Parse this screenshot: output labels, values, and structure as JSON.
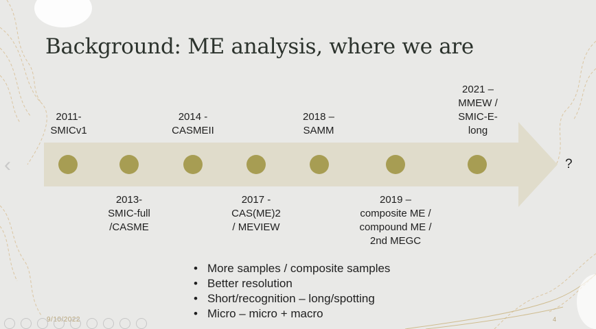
{
  "slide": {
    "title": "Background: ME analysis, where we are",
    "timeline_top": [
      [
        "2011-",
        "SMICv1"
      ],
      [
        "2014 -",
        "CASMEII"
      ],
      [
        "2018 –",
        "SAMM"
      ],
      [
        "2021 –",
        "MMEW /",
        "SMIC-E-",
        "long"
      ]
    ],
    "timeline_bottom": [
      [
        "2013-",
        "SMIC-full",
        "/CASME"
      ],
      [
        "2017 -",
        "CAS(ME)2",
        "/ MEVIEW"
      ],
      [
        "2019 –",
        "composite ME /",
        "compound ME /",
        "2nd MEGC"
      ]
    ],
    "end_mark": "?",
    "bullets": [
      "More samples / composite samples",
      "Better resolution",
      "Short/recognition – long/spotting",
      "Micro – micro + macro"
    ],
    "bullet_char": "•",
    "date": "9/10/2022",
    "page_number": "4"
  },
  "colors": {
    "background": "#e9e9e7",
    "arrow": "#e0dccb",
    "milestone": "#a79d53",
    "decoration": "#d6b98a"
  },
  "icons": {
    "prev_slide": "chevron-left-icon"
  }
}
